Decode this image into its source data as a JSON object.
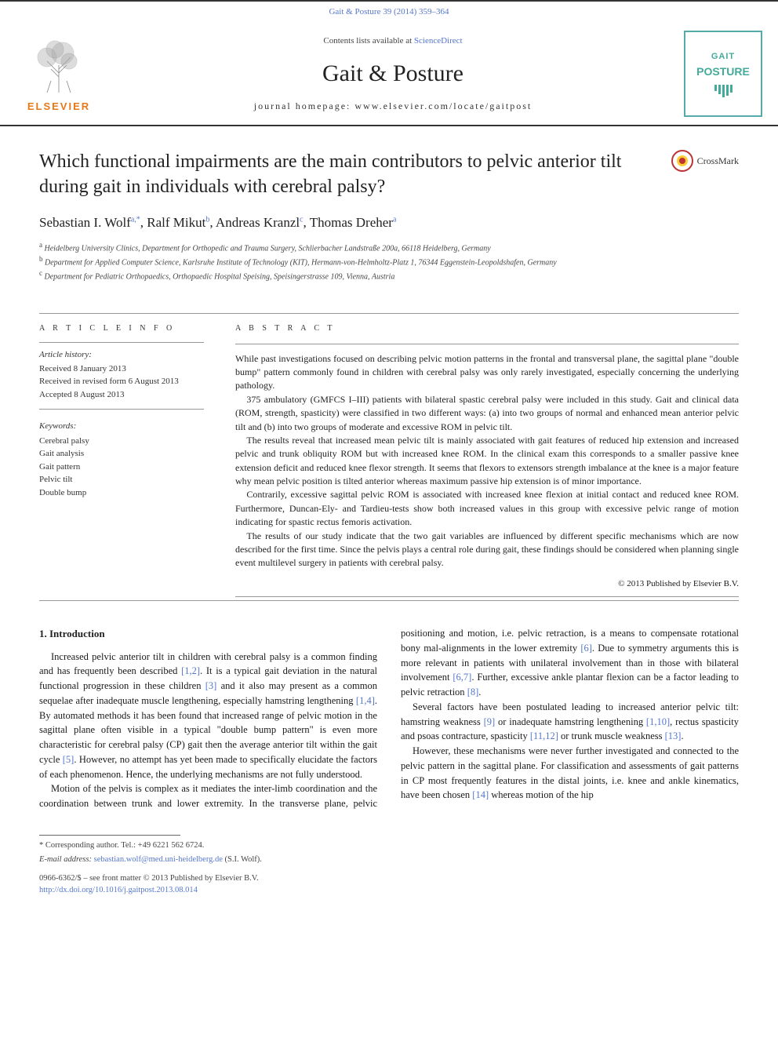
{
  "header": {
    "journal_ref": "Gait & Posture 39 (2014) 359–364",
    "contents_line": "Contents lists available at ",
    "sciencedirect": "ScienceDirect",
    "journal_name": "Gait & Posture",
    "homepage_label": "journal homepage: www.elsevier.com/locate/gaitpost",
    "elsevier": "ELSEVIER",
    "cover_title": "GAIT",
    "cover_subtitle": "POSTURE"
  },
  "crossmark": "CrossMark",
  "title": "Which functional impairments are the main contributors to pelvic anterior tilt during gait in individuals with cerebral palsy?",
  "authors": [
    {
      "name": "Sebastian I. Wolf",
      "sup": "a,*"
    },
    {
      "name": "Ralf Mikut",
      "sup": "b"
    },
    {
      "name": "Andreas Kranzl",
      "sup": "c"
    },
    {
      "name": "Thomas Dreher",
      "sup": "a"
    }
  ],
  "affiliations": [
    {
      "sup": "a",
      "text": "Heidelberg University Clinics, Department for Orthopedic and Trauma Surgery, Schlierbacher Landstraße 200a, 66118 Heidelberg, Germany"
    },
    {
      "sup": "b",
      "text": "Department for Applied Computer Science, Karlsruhe Institute of Technology (KIT), Hermann-von-Helmholtz-Platz 1, 76344 Eggenstein-Leopoldshafen, Germany"
    },
    {
      "sup": "c",
      "text": "Department for Pediatric Orthopaedics, Orthopaedic Hospital Speising, Speisingerstrasse 109, Vienna, Austria"
    }
  ],
  "article_info": {
    "heading": "A R T I C L E   I N F O",
    "history_label": "Article history:",
    "history": [
      "Received 8 January 2013",
      "Received in revised form 6 August 2013",
      "Accepted 8 August 2013"
    ],
    "keywords_label": "Keywords:",
    "keywords": [
      "Cerebral palsy",
      "Gait analysis",
      "Gait pattern",
      "Pelvic tilt",
      "Double bump"
    ]
  },
  "abstract": {
    "heading": "A B S T R A C T",
    "paragraphs": [
      "While past investigations focused on describing pelvic motion patterns in the frontal and transversal plane, the sagittal plane \"double bump\" pattern commonly found in children with cerebral palsy was only rarely investigated, especially concerning the underlying pathology.",
      "375 ambulatory (GMFCS I–III) patients with bilateral spastic cerebral palsy were included in this study. Gait and clinical data (ROM, strength, spasticity) were classified in two different ways: (a) into two groups of normal and enhanced mean anterior pelvic tilt and (b) into two groups of moderate and excessive ROM in pelvic tilt.",
      "The results reveal that increased mean pelvic tilt is mainly associated with gait features of reduced hip extension and increased pelvic and trunk obliquity ROM but with increased knee ROM. In the clinical exam this corresponds to a smaller passive knee extension deficit and reduced knee flexor strength. It seems that flexors to extensors strength imbalance at the knee is a major feature why mean pelvic position is tilted anterior whereas maximum passive hip extension is of minor importance.",
      "Contrarily, excessive sagittal pelvic ROM is associated with increased knee flexion at initial contact and reduced knee ROM. Furthermore, Duncan-Ely- and Tardieu-tests show both increased values in this group with excessive pelvic range of motion indicating for spastic rectus femoris activation.",
      "The results of our study indicate that the two gait variables are influenced by different specific mechanisms which are now described for the first time. Since the pelvis plays a central role during gait, these findings should be considered when planning single event multilevel surgery in patients with cerebral palsy."
    ],
    "copyright": "© 2013 Published by Elsevier B.V."
  },
  "body": {
    "section_number": "1.",
    "section_title": "Introduction",
    "paragraphs": [
      {
        "text": "Increased pelvic anterior tilt in children with cerebral palsy is a common finding and has frequently been described ",
        "ref1": "[1,2]",
        "text2": ". It is a typical gait deviation in the natural functional progression in these children ",
        "ref2": "[3]",
        "text3": " and it also may present as a common sequelae after inadequate muscle lengthening, especially hamstring lengthening ",
        "ref3": "[1,4]",
        "text4": ". By automated methods it has been found that increased range of pelvic motion in the sagittal plane often visible in a typical \"double bump pattern\" is even more characteristic for cerebral palsy (CP) gait then the average anterior tilt within the gait cycle ",
        "ref4": "[5]",
        "text5": ". However, no attempt has yet been made to specifically elucidate the factors of each phenomenon. Hence, the underlying mechanisms are not fully understood."
      },
      {
        "text": "Motion of the pelvis is complex as it mediates the inter-limb coordination and the coordination between trunk and lower extremity. In the transverse plane, pelvic positioning and motion, i.e. pelvic retraction, is a means to compensate rotational bony mal-alignments in the lower extremity ",
        "ref1": "[6]",
        "text2": ". Due to symmetry arguments this is more relevant in patients with unilateral involvement than in those with bilateral involvement ",
        "ref2": "[6,7]",
        "text3": ". Further, excessive ankle plantar flexion can be a factor leading to pelvic retraction ",
        "ref3": "[8]",
        "text4": "."
      },
      {
        "text": "Several factors have been postulated leading to increased anterior pelvic tilt: hamstring weakness ",
        "ref1": "[9]",
        "text2": " or inadequate hamstring lengthening ",
        "ref2": "[1,10]",
        "text3": ", rectus spasticity and psoas contracture, spasticity ",
        "ref3": "[11,12]",
        "text4": " or trunk muscle weakness ",
        "ref4": "[13]",
        "text5": "."
      },
      {
        "text": "However, these mechanisms were never further investigated and connected to the pelvic pattern in the sagittal plane. For classification and assessments of gait patterns in CP most frequently features in the distal joints, i.e. knee and ankle kinematics, have been chosen ",
        "ref1": "[14]",
        "text2": " whereas motion of the hip"
      }
    ]
  },
  "footer": {
    "corresponding": "* Corresponding author. Tel.: +49 6221 562 6724.",
    "email_label": "E-mail address: ",
    "email": "sebastian.wolf@med.uni-heidelberg.de",
    "email_suffix": " (S.I. Wolf).",
    "issn": "0966-6362/$ – see front matter © 2013 Published by Elsevier B.V.",
    "doi": "http://dx.doi.org/10.1016/j.gaitpost.2013.08.014"
  },
  "colors": {
    "link": "#5577cc",
    "elsevier_orange": "#e67817",
    "cover_teal": "#4a9",
    "crossmark_red": "#b33"
  }
}
